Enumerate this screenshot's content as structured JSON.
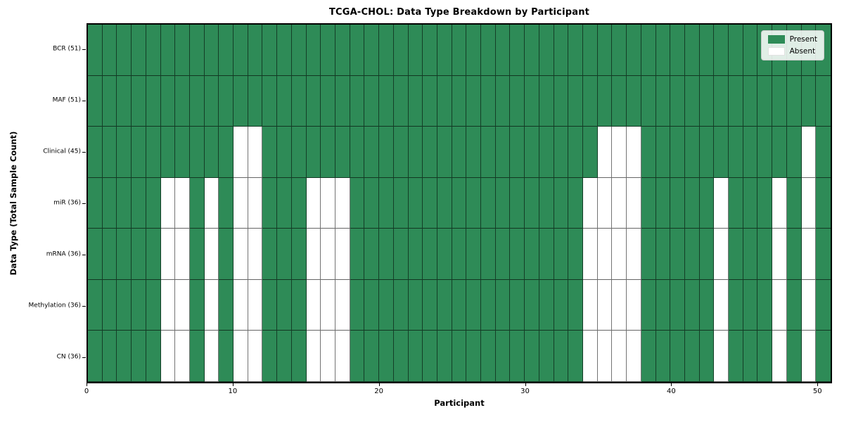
{
  "chart_data": {
    "type": "heatmap",
    "title": "TCGA-CHOL: Data Type Breakdown by Participant",
    "xlabel": "Participant",
    "ylabel": "Data Type (Total Sample Count)",
    "n_participants": 51,
    "x_ticks": [
      0,
      10,
      20,
      30,
      40,
      50
    ],
    "x_range": [
      0,
      51
    ],
    "grid": "cell-borders",
    "legend_position": "upper-right",
    "legend": [
      {
        "label": "Present",
        "color": "#2e8b57"
      },
      {
        "label": "Absent",
        "color": "#ffffff"
      }
    ],
    "colors": {
      "present": "#2e8b57",
      "absent": "#ffffff",
      "cell_edge": "rgba(0,0,0,0.55)",
      "frame": "#000000"
    },
    "rows": [
      {
        "label": "BCR (51)",
        "data_type": "BCR",
        "present_count": 51,
        "absent_participants": []
      },
      {
        "label": "MAF (51)",
        "data_type": "MAF",
        "present_count": 51,
        "absent_participants": []
      },
      {
        "label": "Clinical (45)",
        "data_type": "Clinical",
        "present_count": 45,
        "absent_participants": [
          10,
          11,
          35,
          36,
          37,
          49
        ]
      },
      {
        "label": "miR (36)",
        "data_type": "miR",
        "present_count": 36,
        "absent_participants": [
          5,
          6,
          8,
          10,
          11,
          15,
          16,
          17,
          34,
          35,
          36,
          37,
          43,
          47,
          49
        ]
      },
      {
        "label": "mRNA (36)",
        "data_type": "mRNA",
        "present_count": 36,
        "absent_participants": [
          5,
          6,
          8,
          10,
          11,
          15,
          16,
          17,
          34,
          35,
          36,
          37,
          43,
          47,
          49
        ]
      },
      {
        "label": "Methylation (36)",
        "data_type": "Methylation",
        "present_count": 36,
        "absent_participants": [
          5,
          6,
          8,
          10,
          11,
          15,
          16,
          17,
          34,
          35,
          36,
          37,
          43,
          47,
          49
        ]
      },
      {
        "label": "CN (36)",
        "data_type": "CN",
        "present_count": 36,
        "absent_participants": [
          5,
          6,
          8,
          10,
          11,
          15,
          16,
          17,
          34,
          35,
          36,
          37,
          43,
          47,
          49
        ]
      }
    ]
  }
}
